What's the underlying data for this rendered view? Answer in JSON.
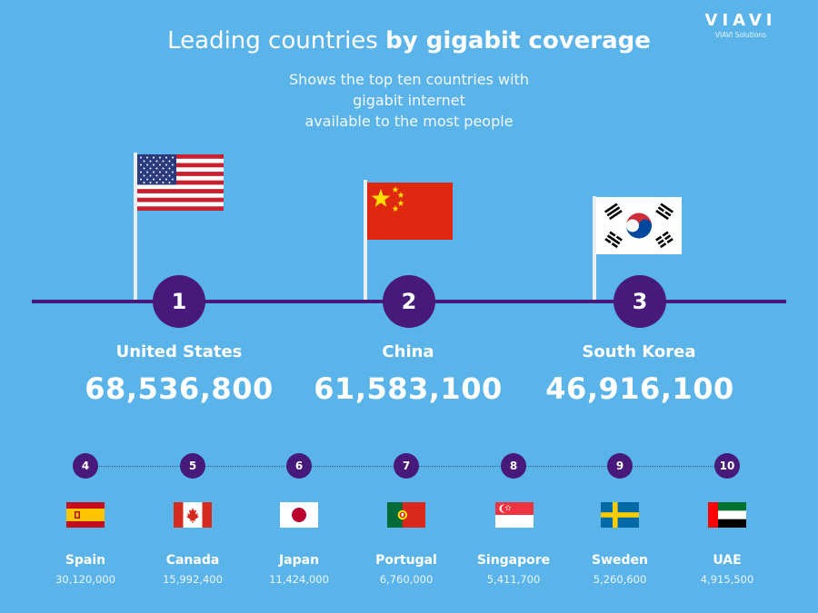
{
  "logo": {
    "mark": "VIAVI",
    "sub": "VIAVI Solutions"
  },
  "title": {
    "light": "Leading countries",
    "bold": "by gigabit coverage"
  },
  "subtitle": {
    "line1": "Shows the top ten countries with gigabit internet",
    "line2": "available to the most people"
  },
  "top": [
    {
      "rank": "1",
      "name": "United States",
      "value": "68,536,800",
      "flag": "usa-flag"
    },
    {
      "rank": "2",
      "name": "China",
      "value": "61,583,100",
      "flag": "china-flag"
    },
    {
      "rank": "3",
      "name": "South Korea",
      "value": "46,916,100",
      "flag": "south-korea-flag"
    }
  ],
  "others": [
    {
      "rank": "4",
      "name": "Spain",
      "value": "30,120,000",
      "flag": "spain-flag"
    },
    {
      "rank": "5",
      "name": "Canada",
      "value": "15,992,400",
      "flag": "canada-flag"
    },
    {
      "rank": "6",
      "name": "Japan",
      "value": "11,424,000",
      "flag": "japan-flag"
    },
    {
      "rank": "7",
      "name": "Portugal",
      "value": "6,760,000",
      "flag": "portugal-flag"
    },
    {
      "rank": "8",
      "name": "Singapore",
      "value": "5,411,700",
      "flag": "singapore-flag"
    },
    {
      "rank": "9",
      "name": "Sweden",
      "value": "5,260,600",
      "flag": "sweden-flag"
    },
    {
      "rank": "10",
      "name": "UAE",
      "value": "4,915,500",
      "flag": "uae-flag"
    }
  ],
  "colors": {
    "background": "#5ab4ea",
    "accent": "#46197a"
  }
}
